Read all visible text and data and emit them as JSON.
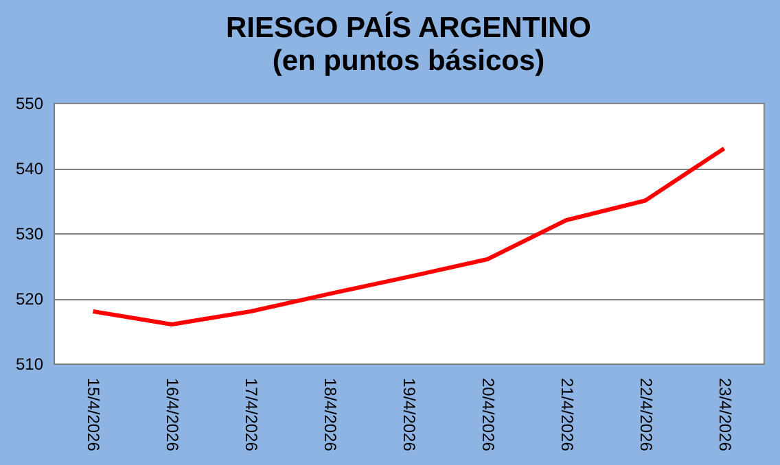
{
  "chart_data": {
    "type": "line",
    "title": "RIESGO PAÍS ARGENTINO",
    "subtitle": "(en puntos básicos)",
    "categories": [
      "15/4/2026",
      "16/4/2026",
      "17/4/2026",
      "18/4/2026",
      "19/4/2026",
      "20/4/2026",
      "21/4/2026",
      "22/4/2026",
      "23/4/2026"
    ],
    "series": [
      {
        "color": "#ff0000",
        "values": [
          518,
          516,
          518,
          520.7,
          523.3,
          526,
          532,
          535,
          543
        ]
      }
    ],
    "ylim": [
      510,
      550
    ],
    "yticks": [
      510,
      520,
      530,
      540,
      550
    ],
    "grid": "y",
    "marker": "none",
    "line_style": "solid"
  }
}
